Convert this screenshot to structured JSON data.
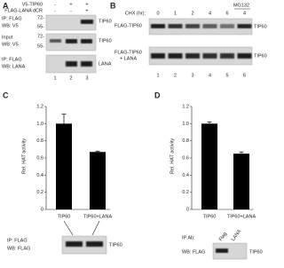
{
  "panel_a": {
    "label": "A",
    "conditions": [
      {
        "name": "V5-TIP60",
        "signs": [
          "-",
          "+",
          "+"
        ]
      },
      {
        "name": "FLAG-LANA dCR",
        "signs": [
          "-",
          "-",
          "+"
        ]
      }
    ],
    "blots": [
      {
        "ip": "IP: FLAG",
        "wb": "WB: V5",
        "markers": [
          "72-",
          "55-"
        ],
        "target": "TIP60"
      },
      {
        "ip": "Input",
        "wb": "WB: V5",
        "markers": [
          "72-",
          "55-"
        ],
        "target": "TIP60"
      },
      {
        "ip": "IP: FLAG",
        "wb": "WB: LANA",
        "target": "LANA"
      }
    ],
    "lanes": [
      "1",
      "2",
      "3"
    ]
  },
  "panel_b": {
    "label": "B",
    "treatment": "CHX (hr):",
    "times": [
      "0",
      "1",
      "2",
      "4",
      "6",
      "4"
    ],
    "inhibitor": "MG132",
    "blots": [
      {
        "sample": "FLAG-TIP60",
        "target": "TIP60"
      },
      {
        "sample": "FLAG-TIP60",
        "sample_extra": "+ LANA",
        "target": "TIP60"
      }
    ],
    "lanes": [
      "1",
      "2",
      "3",
      "4",
      "5",
      "6"
    ]
  },
  "panel_c": {
    "label": "C",
    "chart": {
      "type": "bar",
      "ylabel": "Rel. HAT activity",
      "categories": [
        "TIP60",
        "TIP60+LANA"
      ],
      "values": [
        1.0,
        0.67
      ],
      "errors": [
        0.11,
        0.01
      ],
      "ylim": [
        0,
        1.2
      ],
      "yticks": [
        0,
        0.2,
        0.4,
        0.6,
        0.8,
        {
          "value": 1,
          "label": "1.0"
        },
        1.2
      ]
    },
    "blot": {
      "ip": "IP: FLAG",
      "wb": "WB: FLAG",
      "target": "TIP60"
    }
  },
  "panel_d": {
    "label": "D",
    "chart": {
      "type": "bar",
      "ylabel": "Rel. HAT activity",
      "categories": [
        "TIP60",
        "TIP60+LANA"
      ],
      "values": [
        1.0,
        0.65
      ],
      "errors": [
        0.02,
        0.02
      ],
      "ylim": [
        0,
        1.2
      ],
      "yticks": [
        0,
        0.2,
        0.4,
        0.6,
        0.8,
        {
          "value": 1,
          "label": "1.0"
        },
        1.2
      ]
    },
    "blot": {
      "ip": "IP Ab:",
      "lanes": [
        "Flag",
        "LANA"
      ],
      "wb": "WB: FLAG",
      "target": "TIP60"
    }
  }
}
